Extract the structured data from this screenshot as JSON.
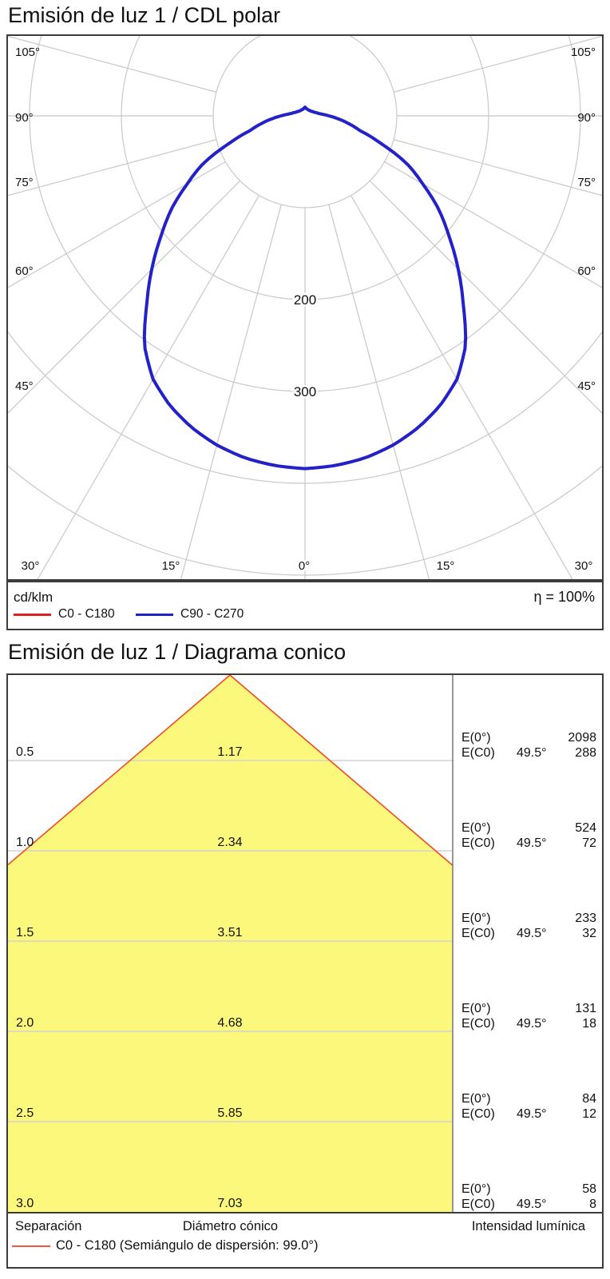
{
  "chart_data": [
    {
      "type": "polar_line",
      "title": "Emisión de luz 1 / CDL polar",
      "units": "cd/klm",
      "efficiency_label": "η = 100%",
      "angle_labels_left": [
        "105°",
        "90°",
        "75°",
        "60°",
        "45°"
      ],
      "angle_labels_right": [
        "105°",
        "90°",
        "75°",
        "60°",
        "45°"
      ],
      "angle_labels_bottom": [
        "30°",
        "15°",
        "0°",
        "15°",
        "30°"
      ],
      "angle_tick_step_deg": 15,
      "radial_rings": [
        100,
        200,
        300,
        400,
        500
      ],
      "ring_labels": [
        {
          "value": 200,
          "text": "200"
        },
        {
          "value": 300,
          "text": "300"
        }
      ],
      "grid_color": "#c8c8c8",
      "series": [
        {
          "name": "C0 - C180",
          "color": "#dd2020",
          "gamma_deg": [
            0,
            5,
            10,
            15,
            20,
            25,
            30,
            35,
            40,
            45,
            50,
            55,
            60,
            65,
            70,
            75,
            80,
            85,
            90,
            95,
            100,
            110,
            125,
            140,
            160,
            170,
            175,
            180
          ],
          "cd_per_klm": [
            384,
            382,
            378,
            371,
            361,
            348,
            331,
            305,
            268,
            236,
            205,
            178,
            148,
            122,
            88,
            62,
            48,
            36,
            26,
            19,
            15,
            11,
            8.5,
            7.5,
            7.5,
            8,
            8.8,
            9.5
          ]
        },
        {
          "name": "C90 - C270",
          "color": "#2222c8",
          "gamma_deg": [
            0,
            5,
            10,
            15,
            20,
            25,
            30,
            35,
            40,
            45,
            50,
            55,
            60,
            65,
            70,
            75,
            80,
            85,
            90,
            95,
            100,
            110,
            125,
            140,
            160,
            170,
            175,
            180
          ],
          "cd_per_klm": [
            384,
            382,
            378,
            371,
            361,
            348,
            331,
            305,
            268,
            236,
            205,
            178,
            148,
            122,
            88,
            62,
            48,
            36,
            26,
            19,
            15,
            11,
            8.5,
            7.5,
            7.5,
            8,
            8.8,
            9.5
          ]
        }
      ]
    },
    {
      "type": "cone_diagram",
      "title": "Emisión de luz 1 / Diagrama conico",
      "beam_half_angle_deg": 49.5,
      "cone_fill_color": "#fcf87b",
      "cone_edge_color": "#ee4a28",
      "grid_color": "#d2d2d2",
      "row_labels": {
        "e0": "E(0°)",
        "ec0": "E(C0)",
        "angle": "49.5°"
      },
      "rows": [
        {
          "separation": "0.5",
          "diameter": "1.17",
          "E0": "2098",
          "EC0": "288"
        },
        {
          "separation": "1.0",
          "diameter": "2.34",
          "E0": "524",
          "EC0": "72"
        },
        {
          "separation": "1.5",
          "diameter": "3.51",
          "E0": "233",
          "EC0": "32"
        },
        {
          "separation": "2.0",
          "diameter": "4.68",
          "E0": "131",
          "EC0": "18"
        },
        {
          "separation": "2.5",
          "diameter": "5.85",
          "E0": "84",
          "EC0": "12"
        },
        {
          "separation": "3.0",
          "diameter": "7.03",
          "E0": "58",
          "EC0": "8"
        }
      ],
      "columns": {
        "separation": "Separación",
        "diameter": "Diámetro cónico",
        "intensity": "Intensidad lumínica"
      },
      "legend": "C0 - C180 (Semiángulo de dispersión: 99.0°)",
      "legend_color": "#ee5544"
    }
  ]
}
